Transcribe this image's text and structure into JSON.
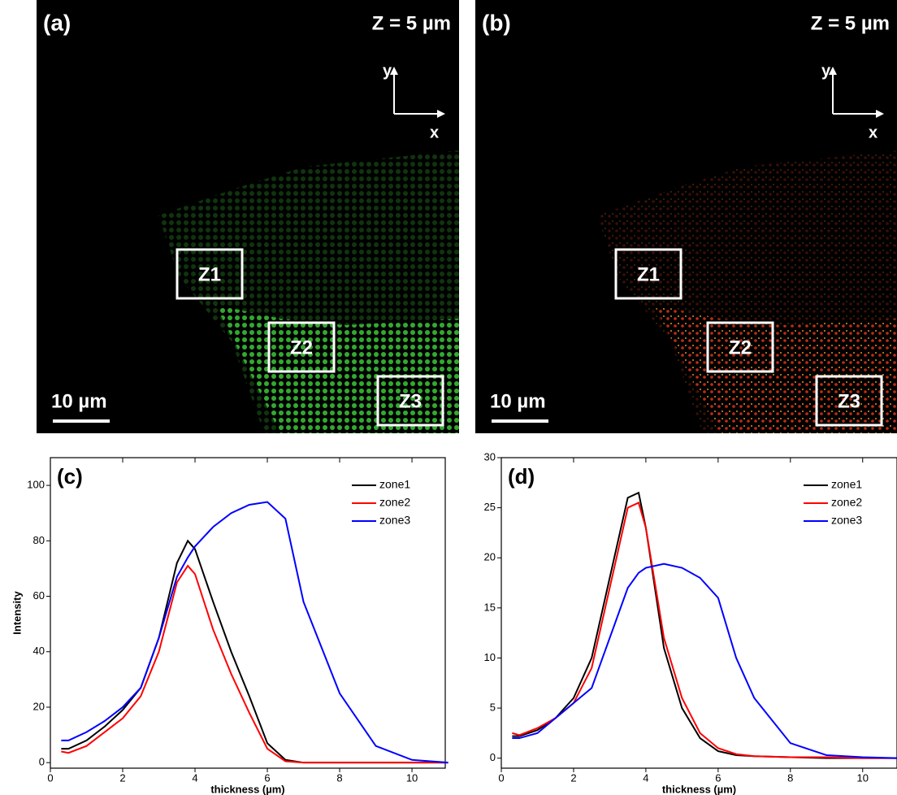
{
  "images": [
    {
      "label": "(a)",
      "depth": "Z = 5 µm",
      "axis_y": "y",
      "axis_x": "x",
      "zones": [
        "Z1",
        "Z2",
        "Z3"
      ],
      "scale_bar": "10 µm",
      "color": "#3fd03a"
    },
    {
      "label": "(b)",
      "depth": "Z = 5 µm",
      "axis_y": "y",
      "axis_x": "x",
      "zones": [
        "Z1",
        "Z2",
        "Z3"
      ],
      "scale_bar": "10 µm",
      "color": "#e8361a"
    }
  ],
  "chart_data": [
    {
      "type": "line",
      "label": "(c)",
      "ylabel": "Intensity",
      "xlabel": "thickness (µm)",
      "x": [
        0.3,
        0.5,
        1,
        1.5,
        2,
        2.5,
        3,
        3.5,
        3.8,
        4,
        4.5,
        5,
        5.5,
        6,
        6.5,
        7,
        8,
        9,
        10,
        11
      ],
      "series": [
        {
          "name": "zone1",
          "color": "#000000",
          "values": [
            5,
            5,
            8,
            13,
            19,
            27,
            45,
            72,
            80,
            77,
            58,
            40,
            24,
            7,
            1,
            0,
            0,
            0,
            0,
            0
          ]
        },
        {
          "name": "zone2",
          "color": "#ff0000",
          "values": [
            4,
            3.5,
            6,
            11,
            16,
            24,
            40,
            65,
            71,
            68,
            48,
            32,
            18,
            5,
            0.5,
            0,
            0,
            0,
            0,
            0
          ]
        },
        {
          "name": "zone3",
          "color": "#0000ff",
          "values": [
            8,
            8,
            11,
            15,
            20,
            27,
            45,
            67,
            74,
            78,
            85,
            90,
            93,
            94,
            88,
            58,
            25,
            6,
            1,
            0
          ]
        }
      ],
      "xlim": [
        0,
        10.92
      ],
      "ylim": [
        -2,
        110
      ],
      "xticks": [
        0,
        2,
        4,
        6,
        8,
        10
      ],
      "yticks": [
        0,
        20,
        40,
        60,
        80,
        100
      ],
      "legend": "upper right"
    },
    {
      "type": "line",
      "label": "(d)",
      "xlabel": "thickness (µm)",
      "x": [
        0.3,
        0.5,
        1,
        1.5,
        2,
        2.5,
        3,
        3.5,
        3.8,
        4,
        4.5,
        5,
        5.5,
        6,
        6.5,
        7,
        8,
        9,
        10,
        11
      ],
      "series": [
        {
          "name": "zone1",
          "color": "#000000",
          "values": [
            2.2,
            2.2,
            2.8,
            4,
            6,
            10,
            18,
            26,
            26.5,
            23,
            11,
            5,
            2,
            0.7,
            0.3,
            0.2,
            0.1,
            0,
            0,
            0
          ]
        },
        {
          "name": "zone2",
          "color": "#ff0000",
          "values": [
            2.5,
            2.3,
            3,
            4,
            5.5,
            9,
            17,
            25,
            25.5,
            23,
            12,
            6,
            2.5,
            1,
            0.4,
            0.2,
            0.1,
            0.1,
            0,
            0
          ]
        },
        {
          "name": "zone3",
          "color": "#0000ff",
          "values": [
            2,
            2,
            2.5,
            4,
            5.5,
            7,
            12,
            17,
            18.5,
            19,
            19.4,
            19,
            18,
            16,
            10,
            6,
            1.5,
            0.3,
            0.1,
            0
          ]
        }
      ],
      "xlim": [
        0,
        10.95
      ],
      "ylim": [
        -1,
        30
      ],
      "xticks": [
        0,
        2,
        4,
        6,
        8,
        10
      ],
      "yticks": [
        0,
        5,
        10,
        15,
        20,
        25,
        30
      ],
      "legend": "upper right"
    }
  ]
}
